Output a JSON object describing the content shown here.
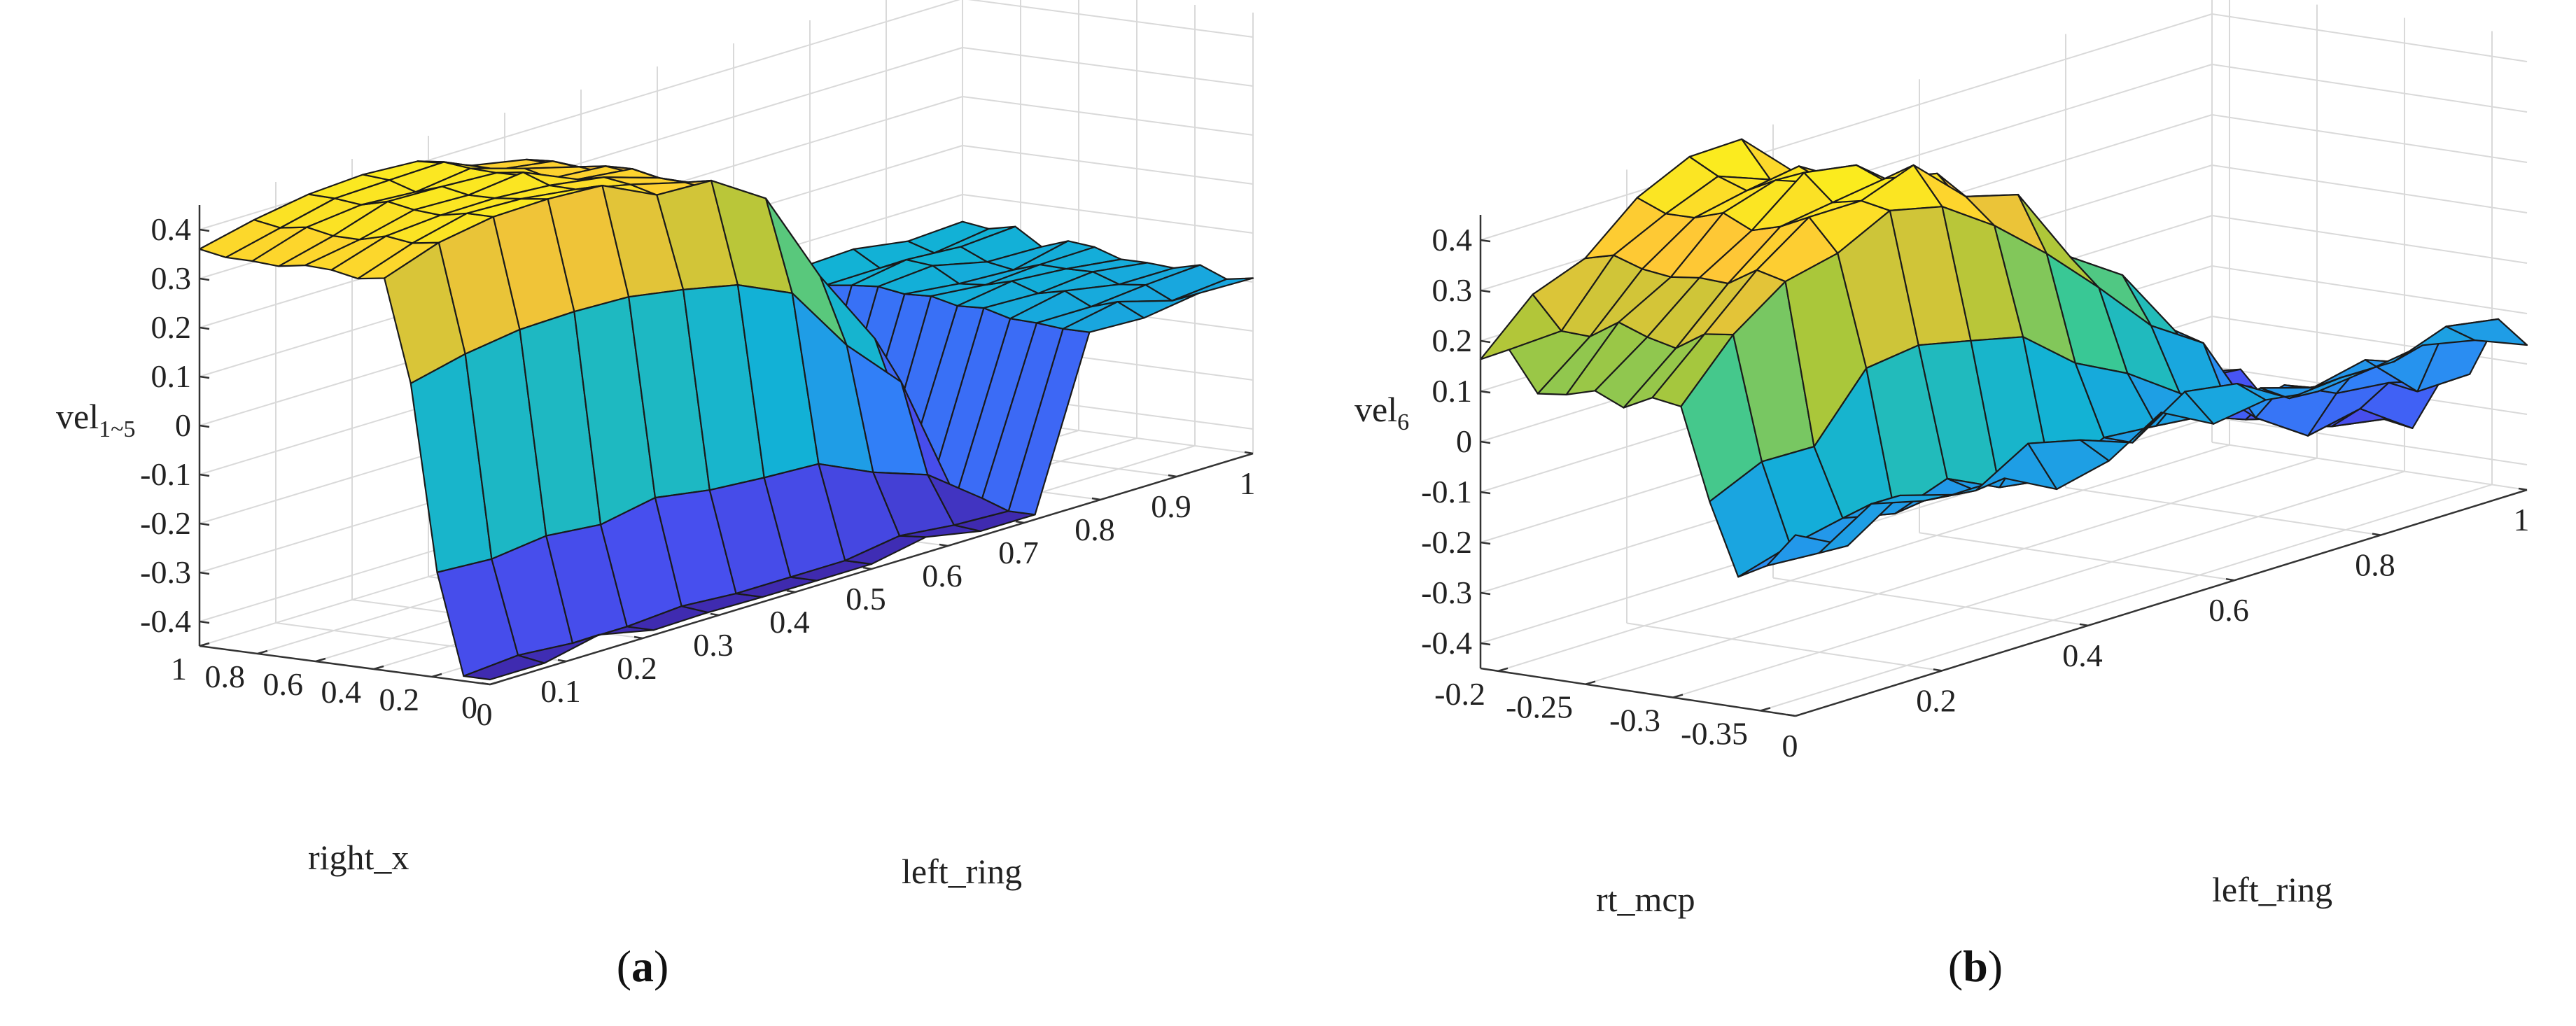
{
  "chart_data": [
    {
      "type": "surface",
      "panel_caption": "a",
      "zlabel_main": "vel",
      "zlabel_sub": "1~5",
      "xlabel": "left_ring",
      "ylabel": "right_x",
      "xlim": [
        0,
        1
      ],
      "ylim": [
        0,
        1
      ],
      "zlim": [
        -0.45,
        0.45
      ],
      "x_ticks": [
        "0",
        "0.1",
        "0.2",
        "0.3",
        "0.4",
        "0.5",
        "0.6",
        "0.7",
        "0.8",
        "0.9",
        "1"
      ],
      "x_tick_values": [
        0,
        0.1,
        0.2,
        0.3,
        0.4,
        0.5,
        0.6,
        0.7,
        0.8,
        0.9,
        1
      ],
      "y_ticks": [
        "0",
        "0.2",
        "0.4",
        "0.6",
        "0.8",
        "1"
      ],
      "y_tick_values": [
        0,
        0.2,
        0.4,
        0.6,
        0.8,
        1
      ],
      "z_ticks": [
        "-0.4",
        "-0.3",
        "-0.2",
        "-0.1",
        "0",
        "0.1",
        "0.2",
        "0.3",
        "0.4"
      ],
      "z_tick_values": [
        -0.4,
        -0.3,
        -0.2,
        -0.1,
        0,
        0.1,
        0.2,
        0.3,
        0.4
      ],
      "grid": true,
      "colormap": "parula",
      "surface_x_count": 14,
      "surface_y_count": 11,
      "surface_shape": "ridge",
      "surface_params": {
        "peak": 0.4,
        "rise_start": 0.1,
        "rise_end": 0.36,
        "high_x": 0.45,
        "fall_x": 0.66,
        "fall_steep": 0.06,
        "noise": 0.03,
        "low": -0.42
      }
    },
    {
      "type": "surface",
      "panel_caption": "b",
      "zlabel_main": "vel",
      "zlabel_sub": "6",
      "xlabel": "left_ring",
      "ylabel": "rt_mcp",
      "xlim": [
        0,
        1
      ],
      "ylim": [
        -0.37,
        -0.19
      ],
      "zlim": [
        -0.45,
        0.45
      ],
      "x_ticks": [
        "0",
        "0.2",
        "0.4",
        "0.6",
        "0.8",
        "1"
      ],
      "x_tick_values": [
        0,
        0.2,
        0.4,
        0.6,
        0.8,
        1
      ],
      "y_ticks": [
        "-0.35",
        "-0.3",
        "-0.25",
        "-0.2"
      ],
      "y_tick_values": [
        -0.35,
        -0.3,
        -0.25,
        -0.2
      ],
      "z_ticks": [
        "-0.4",
        "-0.3",
        "-0.2",
        "-0.1",
        "0",
        "0.1",
        "0.2",
        "0.3",
        "0.4"
      ],
      "z_tick_values": [
        -0.4,
        -0.3,
        -0.2,
        -0.1,
        0,
        0.1,
        0.2,
        0.3,
        0.4
      ],
      "grid": true,
      "colormap": "parula",
      "surface_x_count": 14,
      "surface_y_count": 11,
      "surface_shape": "dome",
      "surface_params": {
        "peak": 0.43,
        "rise_start": 0.06,
        "rise_end": 0.42,
        "high_x": 0.4,
        "fall_x": 0.82,
        "fall_steep": 0.2,
        "noise": 0.05,
        "low": -0.45
      }
    }
  ]
}
